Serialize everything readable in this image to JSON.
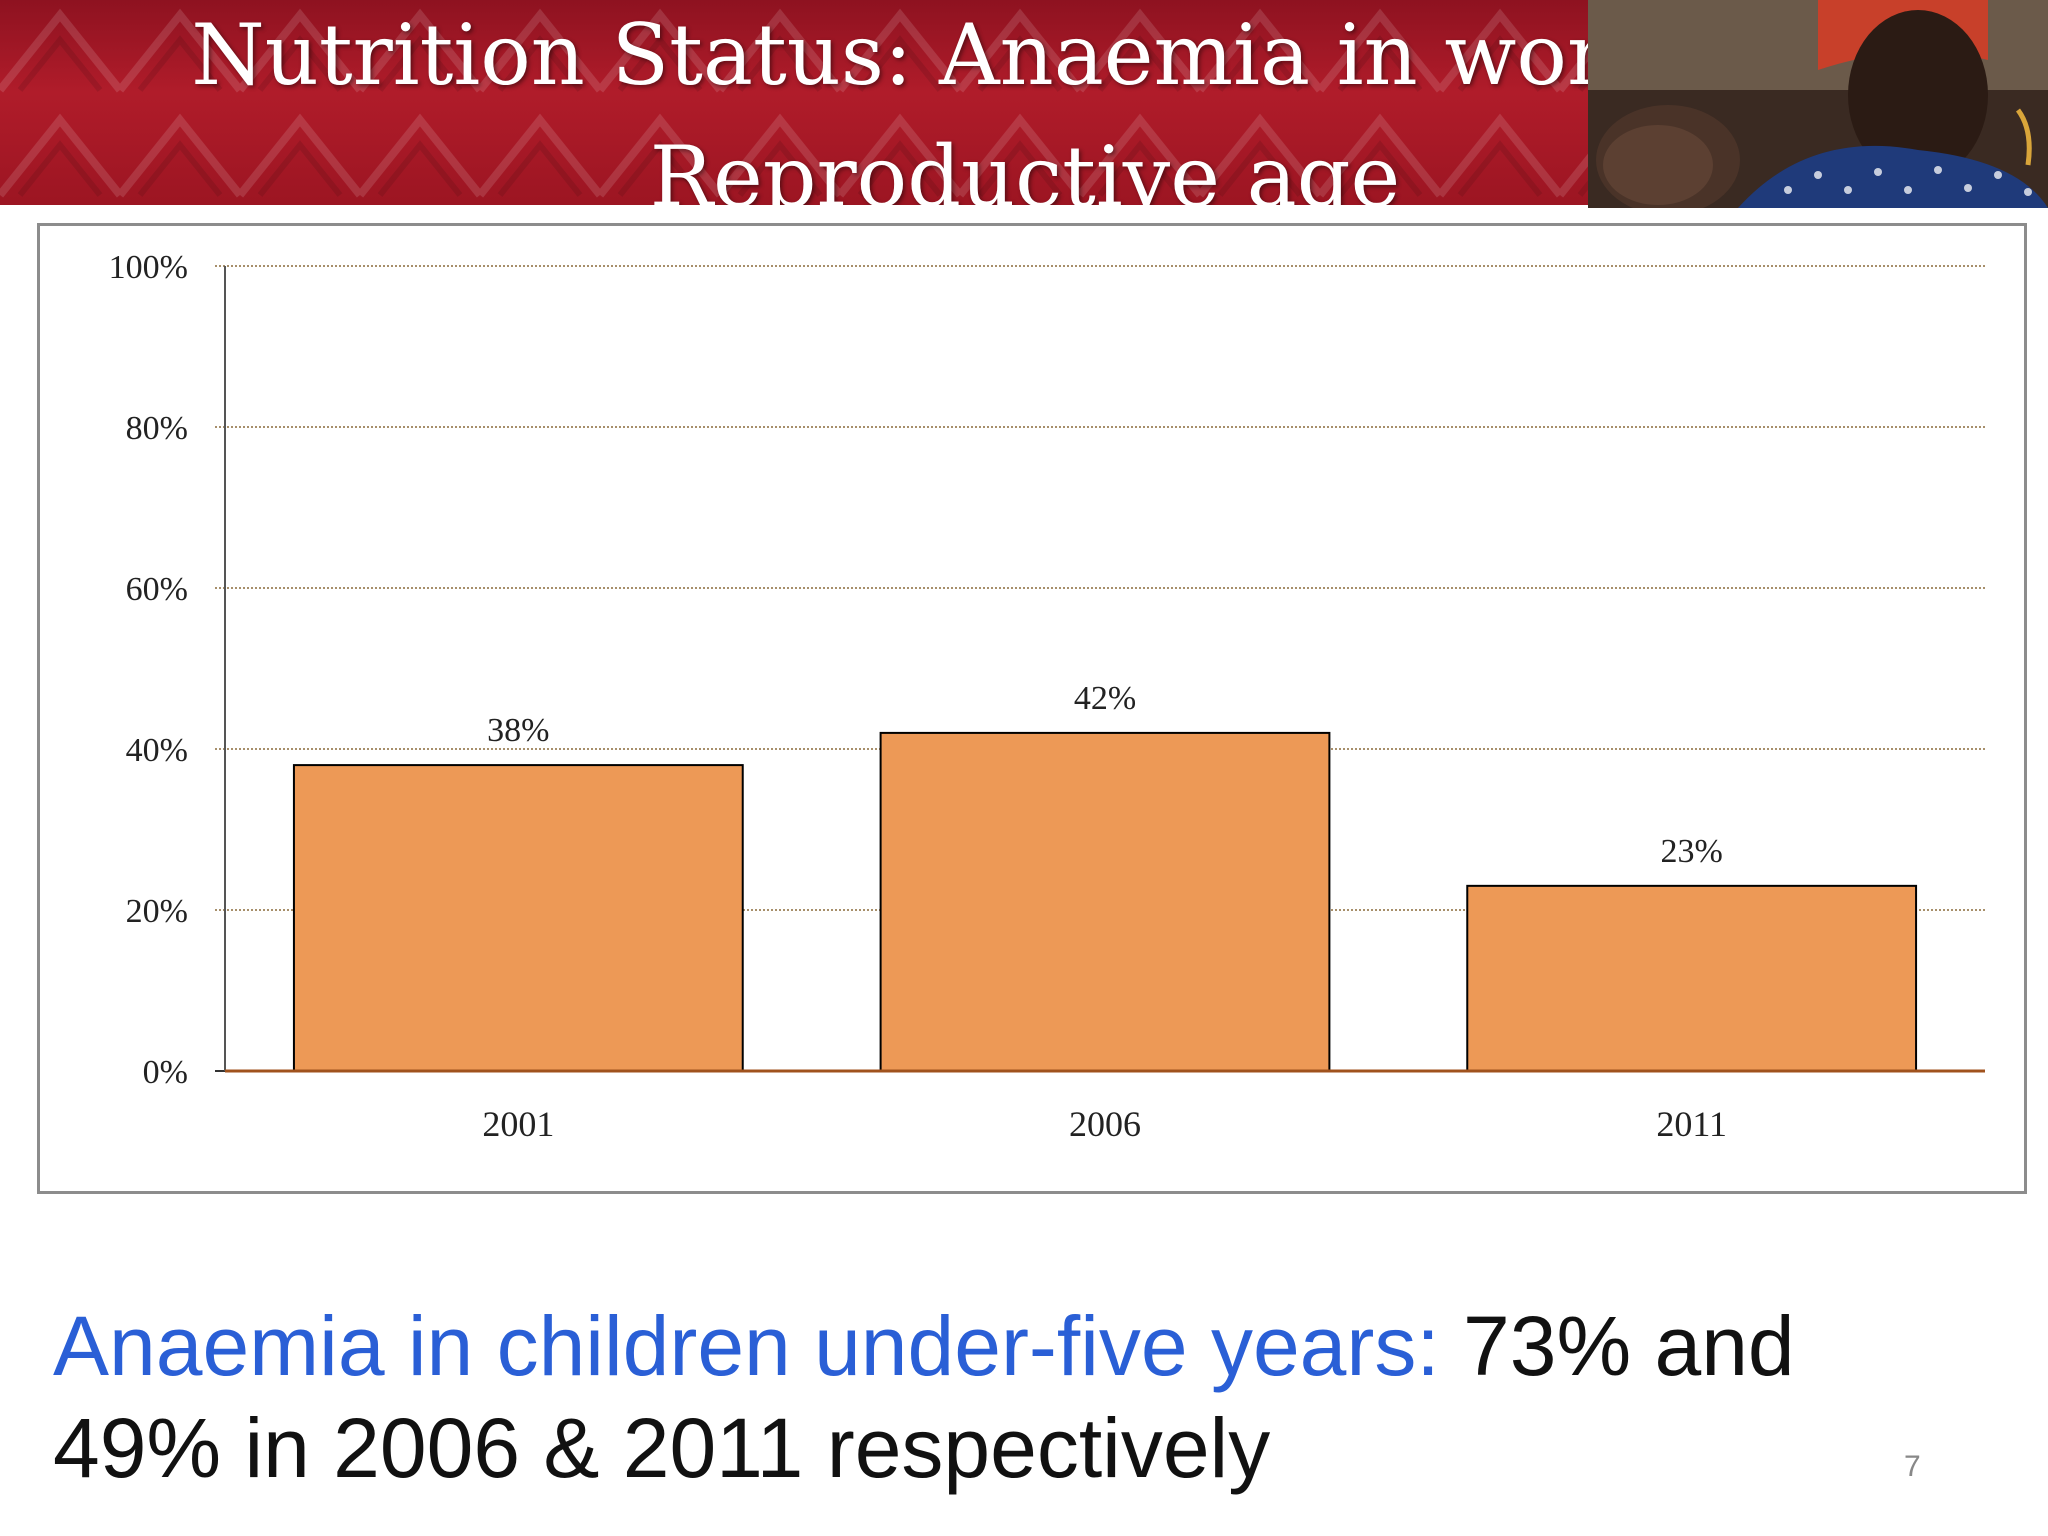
{
  "slide": {
    "title": "Nutrition Status: Anaemia in women of Reproductive age",
    "title_line1": "Nutrition Status: Anaemia in women of",
    "title_line2": "Reproductive age",
    "footer_highlight": "Anaemia in children under-five years:",
    "footer_rest": " 73% and",
    "footer_line2": "49% in 2006 & 2011 respectively",
    "page_number": "7"
  },
  "colors": {
    "banner": "#9c1522",
    "bar_fill": "#ed9956",
    "bar_stroke": "#000000",
    "highlight_text": "#2a5fd6"
  },
  "chart_data": {
    "type": "bar",
    "categories": [
      "2001",
      "2006",
      "2011"
    ],
    "values": [
      38,
      42,
      23
    ],
    "value_labels": [
      "38%",
      "42%",
      "23%"
    ],
    "ylim": [
      0,
      100
    ],
    "yticks": [
      "0%",
      "20%",
      "40%",
      "60%",
      "80%",
      "100%"
    ],
    "grid": true,
    "legend": "none",
    "title": "",
    "xlabel": "",
    "ylabel": ""
  }
}
